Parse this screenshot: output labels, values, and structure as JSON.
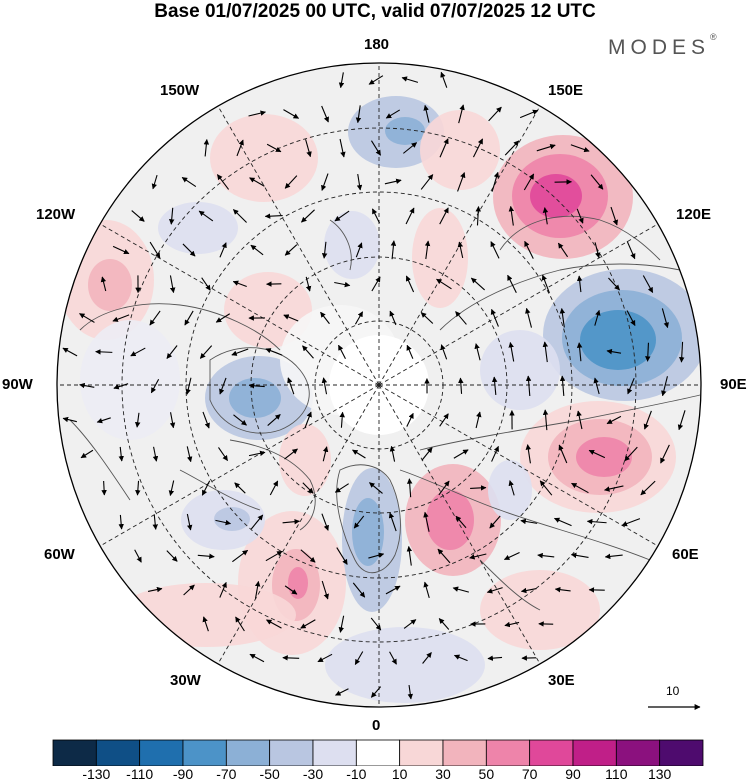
{
  "title": "Base 01/07/2025 00 UTC, valid 07/07/2025 12 UTC",
  "logo": {
    "text": "MODES",
    "mark": "®"
  },
  "longitude_labels": {
    "lon_180": "180",
    "lon_150E": "150E",
    "lon_120E": "120E",
    "lon_90E": "90E",
    "lon_60E": "60E",
    "lon_30E": "30E",
    "lon_0": "0",
    "lon_30W": "30W",
    "lon_60W": "60W",
    "lon_90W": "90W",
    "lon_120W": "120W",
    "lon_150W": "150W"
  },
  "reference_vector": {
    "label": "10"
  },
  "colorbar": {
    "labels": [
      "-130",
      "-110",
      "-90",
      "-70",
      "-50",
      "-30",
      "-10",
      "10",
      "30",
      "50",
      "70",
      "90",
      "110",
      "130"
    ],
    "colors": [
      "#0d2a47",
      "#0f4f86",
      "#1f6fae",
      "#4c93c8",
      "#8cb0d6",
      "#b9c6e1",
      "#dddff0",
      "#ffffff",
      "#f8d7d7",
      "#f2b4bd",
      "#ee84aa",
      "#e0489a",
      "#c01f88",
      "#8b117e",
      "#4e0b6e"
    ]
  },
  "map": {
    "anomaly_color_scale": "blue negative, pink/purple positive",
    "features": [
      "coastlines",
      "latitude circles",
      "longitude lines",
      "wind vectors"
    ]
  }
}
